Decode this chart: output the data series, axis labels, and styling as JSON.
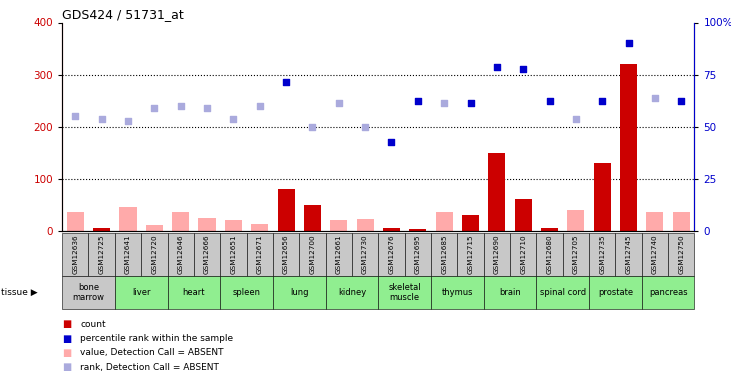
{
  "title": "GDS424 / 51731_at",
  "samples": [
    "GSM12636",
    "GSM12725",
    "GSM12641",
    "GSM12720",
    "GSM12646",
    "GSM12666",
    "GSM12651",
    "GSM12671",
    "GSM12656",
    "GSM12700",
    "GSM12661",
    "GSM12730",
    "GSM12676",
    "GSM12695",
    "GSM12685",
    "GSM12715",
    "GSM12690",
    "GSM12710",
    "GSM12680",
    "GSM12705",
    "GSM12735",
    "GSM12745",
    "GSM12740",
    "GSM12750"
  ],
  "tissues": [
    {
      "label": "bone\nmarrow",
      "start": 0,
      "end": 2,
      "color": "#c8c8c8"
    },
    {
      "label": "liver",
      "start": 2,
      "end": 4,
      "color": "#90ee90"
    },
    {
      "label": "heart",
      "start": 4,
      "end": 6,
      "color": "#90ee90"
    },
    {
      "label": "spleen",
      "start": 6,
      "end": 8,
      "color": "#90ee90"
    },
    {
      "label": "lung",
      "start": 8,
      "end": 10,
      "color": "#90ee90"
    },
    {
      "label": "kidney",
      "start": 10,
      "end": 12,
      "color": "#90ee90"
    },
    {
      "label": "skeletal\nmuscle",
      "start": 12,
      "end": 14,
      "color": "#90ee90"
    },
    {
      "label": "thymus",
      "start": 14,
      "end": 16,
      "color": "#90ee90"
    },
    {
      "label": "brain",
      "start": 16,
      "end": 18,
      "color": "#90ee90"
    },
    {
      "label": "spinal cord",
      "start": 18,
      "end": 20,
      "color": "#90ee90"
    },
    {
      "label": "prostate",
      "start": 20,
      "end": 22,
      "color": "#90ee90"
    },
    {
      "label": "pancreas",
      "start": 22,
      "end": 24,
      "color": "#90ee90"
    }
  ],
  "count_values": [
    35,
    5,
    45,
    10,
    35,
    25,
    20,
    12,
    80,
    50,
    20,
    22,
    5,
    3,
    35,
    30,
    150,
    60,
    5,
    40,
    130,
    320,
    35,
    35
  ],
  "count_absent": [
    true,
    false,
    true,
    true,
    true,
    true,
    true,
    true,
    false,
    false,
    true,
    true,
    false,
    false,
    true,
    false,
    false,
    false,
    false,
    true,
    false,
    false,
    true,
    true
  ],
  "rank_values": [
    220,
    215,
    210,
    235,
    240,
    235,
    215,
    240,
    285,
    200,
    245,
    200,
    170,
    250,
    245,
    245,
    315,
    310,
    250,
    215,
    250,
    360,
    255,
    250
  ],
  "rank_absent": [
    true,
    true,
    true,
    true,
    true,
    true,
    true,
    true,
    false,
    true,
    true,
    true,
    false,
    false,
    true,
    false,
    false,
    false,
    false,
    true,
    false,
    false,
    true,
    false
  ],
  "ylim_left": [
    0,
    400
  ],
  "ylim_right": [
    0,
    100
  ],
  "yticks_left": [
    0,
    100,
    200,
    300,
    400
  ],
  "yticks_right": [
    0,
    25,
    50,
    75,
    100
  ],
  "color_count_present": "#cc0000",
  "color_count_absent": "#ffaaaa",
  "color_rank_present": "#0000cc",
  "color_rank_absent": "#aaaadd"
}
